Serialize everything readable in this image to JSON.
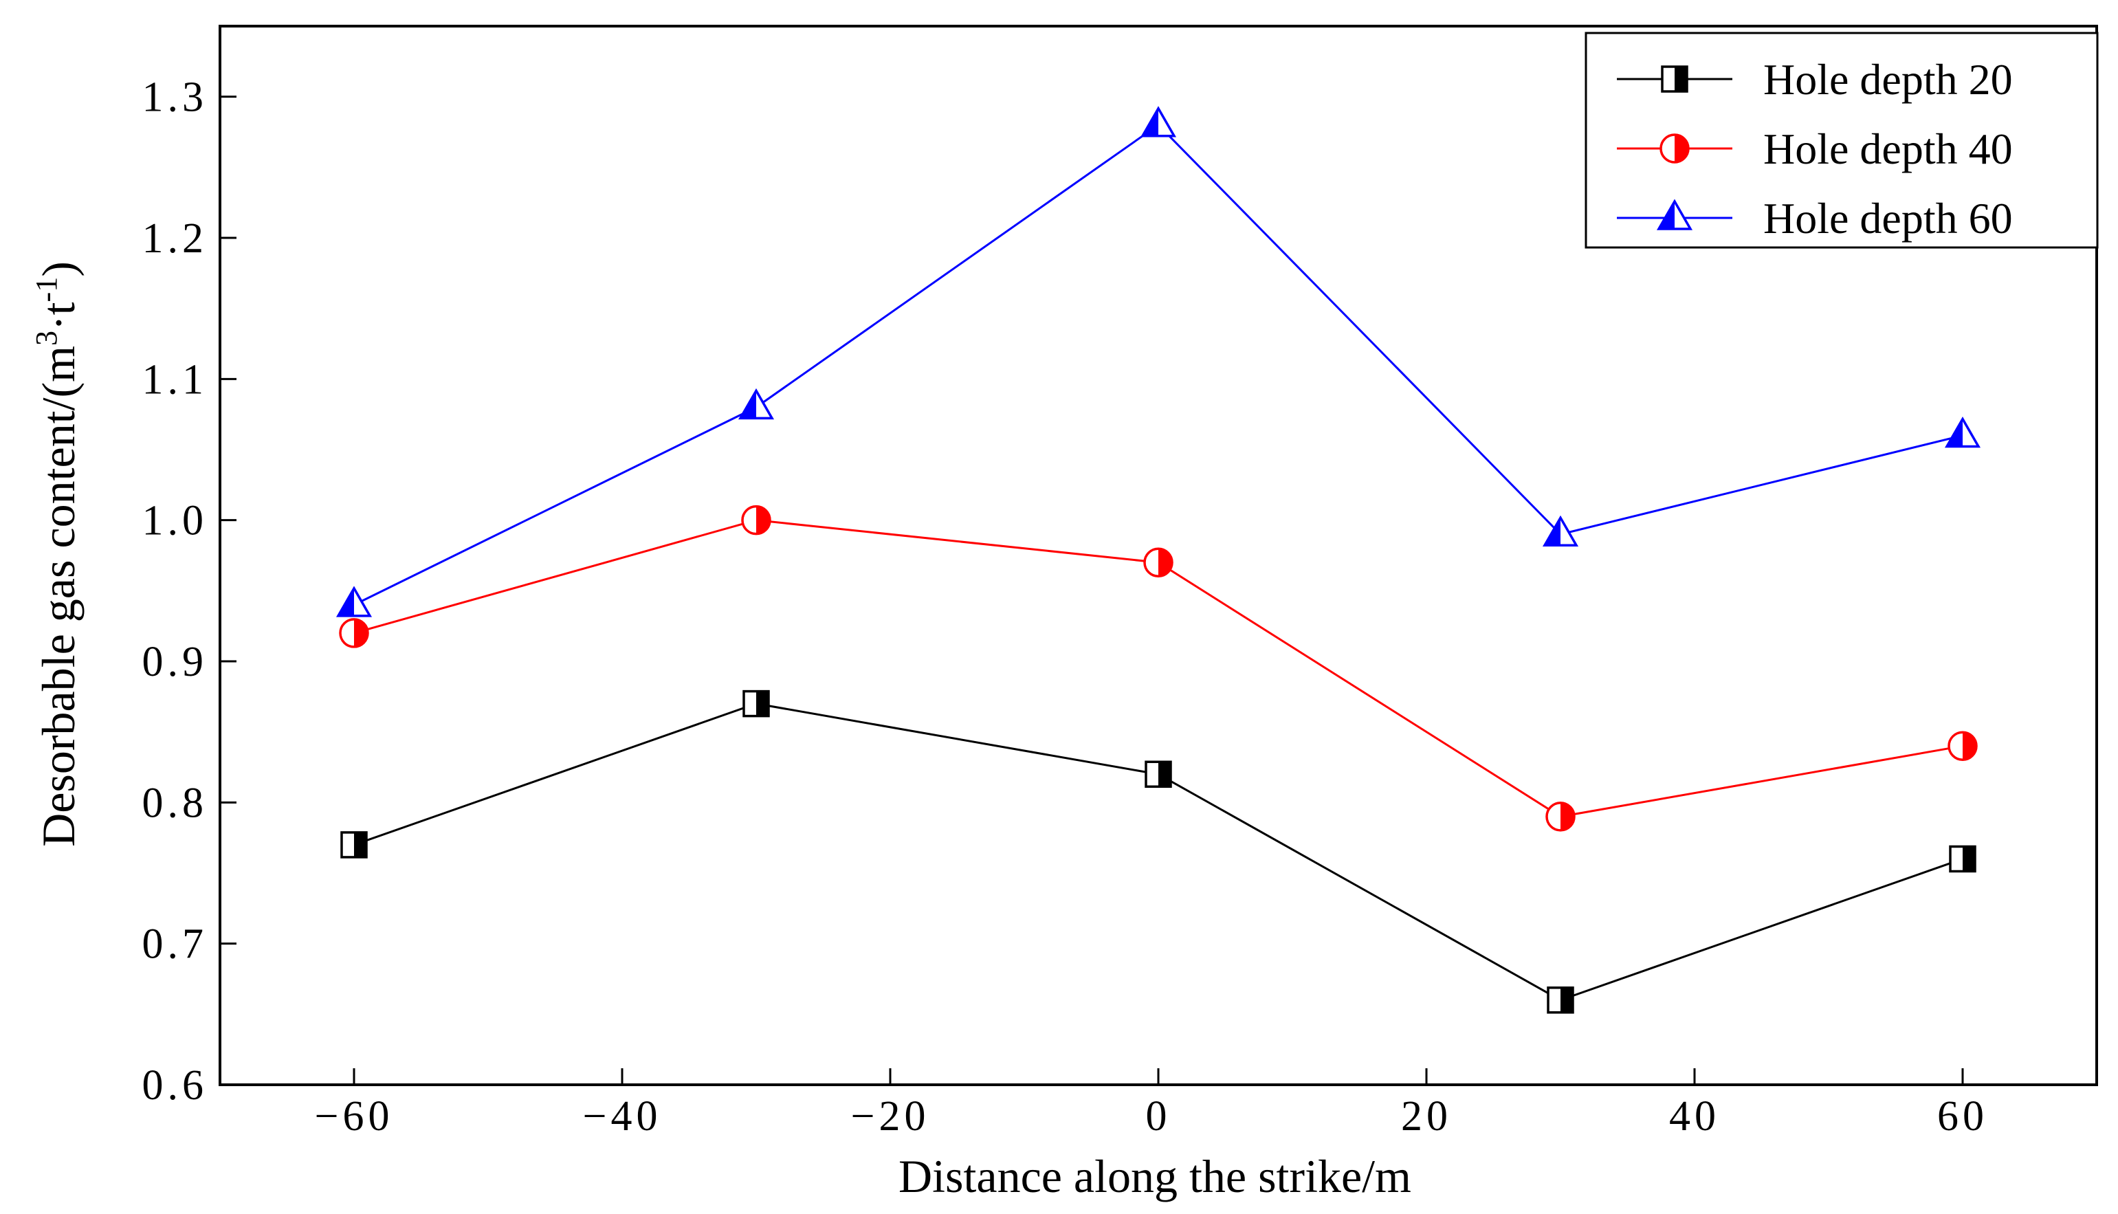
{
  "chart_data": {
    "type": "line",
    "title": "",
    "xlabel": "Distance along the strike/m",
    "ylabel": "Desorbable gas content/(m",
    "ylabel_sup1": "3",
    "ylabel_mid": "·t",
    "ylabel_sup2": "-1",
    "ylabel_end": ")",
    "xlim": [
      -70,
      70
    ],
    "ylim": [
      0.6,
      1.35
    ],
    "xticks": [
      -60,
      -40,
      -20,
      0,
      20,
      40,
      60
    ],
    "xtick_labels": [
      "−60",
      "−40",
      "−20",
      "0",
      "20",
      "40",
      "60"
    ],
    "yticks": [
      0.6,
      0.7,
      0.8,
      0.9,
      1.0,
      1.1,
      1.2,
      1.3
    ],
    "ytick_labels": [
      "0.6",
      "0.7",
      "0.8",
      "0.9",
      "1.0",
      "1.1",
      "1.2",
      "1.3"
    ],
    "x": [
      -60,
      -30,
      0,
      30,
      60
    ],
    "legend_position": "top-right",
    "series": [
      {
        "name": "Hole depth 20",
        "values": [
          0.77,
          0.87,
          0.82,
          0.66,
          0.76
        ],
        "color": "#000000",
        "marker": "half-square"
      },
      {
        "name": "Hole depth 40",
        "values": [
          0.92,
          1.0,
          0.97,
          0.79,
          0.84
        ],
        "color": "#ff0000",
        "marker": "half-circle"
      },
      {
        "name": "Hole depth 60",
        "values": [
          0.94,
          1.08,
          1.28,
          0.99,
          1.06
        ],
        "color": "#0000ff",
        "marker": "half-triangle"
      }
    ]
  }
}
